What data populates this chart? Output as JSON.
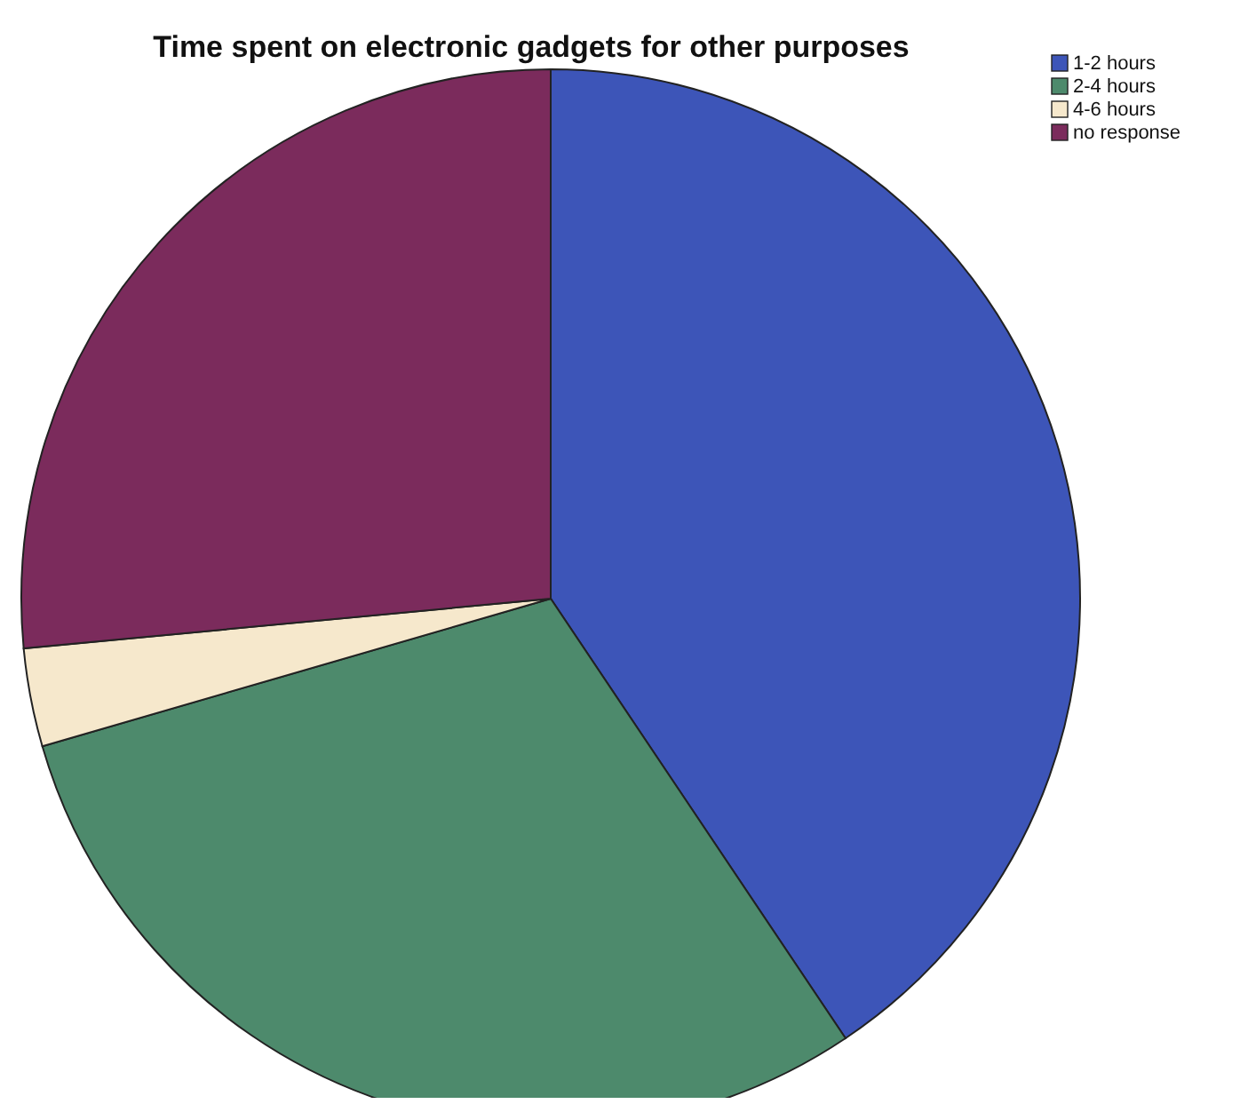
{
  "chart_data": {
    "type": "pie",
    "title": "Time spent on electronic gadgets for other purposes",
    "categories": [
      "1-2 hours",
      "2-4 hours",
      "4-6 hours",
      "no response"
    ],
    "values": [
      40.6,
      29.9,
      3.0,
      26.5
    ],
    "colors": [
      "#3d55b8",
      "#4d8a6c",
      "#f6e8cc",
      "#7b2b5c"
    ],
    "legend": "top right"
  }
}
